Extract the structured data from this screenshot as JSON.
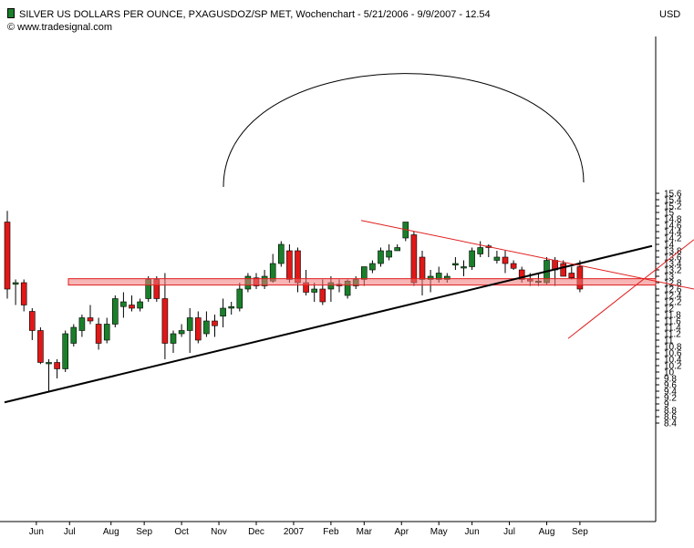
{
  "header": {
    "title": "SILVER US DOLLARS PER OUNCE, PXAGUSDOZ/SP MET, Wochenchart - 5/21/2006 - 9/9/2007 - 12.54",
    "copyright": "© www.tradesignal.com",
    "currency": "USD"
  },
  "colors": {
    "up": "#1a7f2a",
    "down": "#e01818",
    "background": "#ffffff",
    "trend": "#000000",
    "pattern": "#e02020"
  },
  "chart_data": {
    "type": "candlestick",
    "title": "SILVER US DOLLARS PER OUNCE, PXAGUSDOZ/SP MET, Wochenchart - 5/21/2006 - 9/9/2007 - 12.54",
    "ylabel": "USD",
    "ylim": [
      8.2,
      16.0
    ],
    "y_ticks": [
      8.4,
      8.6,
      8.8,
      9,
      9.2,
      9.4,
      9.6,
      9.8,
      10,
      10.2,
      10.4,
      10.6,
      10.8,
      11,
      11.2,
      11.4,
      11.6,
      11.8,
      12,
      12.2,
      12.4,
      12.6,
      12.8,
      13,
      13.2,
      13.4,
      13.6,
      13.8,
      14,
      14.2,
      14.4,
      14.6,
      14.8,
      15,
      15.2,
      15.4,
      15.6
    ],
    "x_labels": [
      {
        "label": "Jun",
        "week": 3.5
      },
      {
        "label": "Jul",
        "week": 7.5
      },
      {
        "label": "Aug",
        "week": 12.5
      },
      {
        "label": "Sep",
        "week": 16.5
      },
      {
        "label": "Oct",
        "week": 21
      },
      {
        "label": "Nov",
        "week": 25.5
      },
      {
        "label": "Dec",
        "week": 30
      },
      {
        "label": "2007",
        "week": 34.5
      },
      {
        "label": "Feb",
        "week": 39
      },
      {
        "label": "Mar",
        "week": 43
      },
      {
        "label": "Apr",
        "week": 47.5
      },
      {
        "label": "May",
        "week": 52
      },
      {
        "label": "Jun",
        "week": 56
      },
      {
        "label": "Jul",
        "week": 60.5
      },
      {
        "label": "Aug",
        "week": 65
      },
      {
        "label": "Sep",
        "week": 69
      }
    ],
    "candles": [
      {
        "o": 14.7,
        "h": 15.05,
        "l": 12.3,
        "c": 12.6
      },
      {
        "o": 12.75,
        "h": 12.9,
        "l": 12.1,
        "c": 12.8
      },
      {
        "o": 12.8,
        "h": 12.9,
        "l": 11.9,
        "c": 12.1
      },
      {
        "o": 11.9,
        "h": 12.0,
        "l": 11.0,
        "c": 11.3
      },
      {
        "o": 11.3,
        "h": 11.4,
        "l": 10.25,
        "c": 10.3
      },
      {
        "o": 10.3,
        "h": 10.4,
        "l": 9.4,
        "c": 10.3
      },
      {
        "o": 10.3,
        "h": 10.4,
        "l": 9.8,
        "c": 10.1
      },
      {
        "o": 10.1,
        "h": 11.3,
        "l": 10.0,
        "c": 11.2
      },
      {
        "o": 10.9,
        "h": 11.5,
        "l": 10.8,
        "c": 11.4
      },
      {
        "o": 11.3,
        "h": 11.8,
        "l": 11.1,
        "c": 11.7
      },
      {
        "o": 11.7,
        "h": 12.1,
        "l": 11.5,
        "c": 11.6
      },
      {
        "o": 11.5,
        "h": 11.7,
        "l": 10.7,
        "c": 10.9
      },
      {
        "o": 11.0,
        "h": 11.7,
        "l": 10.9,
        "c": 11.5
      },
      {
        "o": 11.5,
        "h": 12.4,
        "l": 11.4,
        "c": 12.3
      },
      {
        "o": 12.05,
        "h": 12.5,
        "l": 11.7,
        "c": 12.2
      },
      {
        "o": 12.1,
        "h": 12.4,
        "l": 11.9,
        "c": 12.0
      },
      {
        "o": 12.0,
        "h": 12.3,
        "l": 11.9,
        "c": 12.2
      },
      {
        "o": 12.3,
        "h": 13.0,
        "l": 12.2,
        "c": 12.9
      },
      {
        "o": 12.9,
        "h": 13.0,
        "l": 12.2,
        "c": 12.3
      },
      {
        "o": 12.3,
        "h": 13.1,
        "l": 10.4,
        "c": 10.9
      },
      {
        "o": 10.9,
        "h": 11.3,
        "l": 10.6,
        "c": 11.2
      },
      {
        "o": 11.2,
        "h": 11.5,
        "l": 11.1,
        "c": 11.3
      },
      {
        "o": 11.3,
        "h": 12.0,
        "l": 10.6,
        "c": 11.7
      },
      {
        "o": 11.7,
        "h": 11.9,
        "l": 10.9,
        "c": 11.0
      },
      {
        "o": 11.2,
        "h": 11.9,
        "l": 11.1,
        "c": 11.6
      },
      {
        "o": 11.6,
        "h": 11.8,
        "l": 11.1,
        "c": 11.45
      },
      {
        "o": 11.75,
        "h": 12.3,
        "l": 11.4,
        "c": 12.0
      },
      {
        "o": 12.0,
        "h": 12.2,
        "l": 11.8,
        "c": 12.05
      },
      {
        "o": 12.0,
        "h": 12.8,
        "l": 11.9,
        "c": 12.6
      },
      {
        "o": 12.6,
        "h": 13.1,
        "l": 12.5,
        "c": 13.0
      },
      {
        "o": 12.95,
        "h": 13.1,
        "l": 12.6,
        "c": 12.7
      },
      {
        "o": 12.7,
        "h": 13.2,
        "l": 12.6,
        "c": 13.0
      },
      {
        "o": 12.85,
        "h": 13.7,
        "l": 12.8,
        "c": 13.4
      },
      {
        "o": 13.4,
        "h": 14.1,
        "l": 13.3,
        "c": 14.0
      },
      {
        "o": 13.8,
        "h": 14.0,
        "l": 12.8,
        "c": 12.9
      },
      {
        "o": 13.8,
        "h": 13.9,
        "l": 12.5,
        "c": 12.8
      },
      {
        "o": 12.8,
        "h": 13.2,
        "l": 12.4,
        "c": 12.5
      },
      {
        "o": 12.5,
        "h": 12.8,
        "l": 12.2,
        "c": 12.6
      },
      {
        "o": 12.6,
        "h": 12.9,
        "l": 12.1,
        "c": 12.2
      },
      {
        "o": 12.6,
        "h": 13.0,
        "l": 12.2,
        "c": 12.8
      },
      {
        "o": 12.75,
        "h": 12.9,
        "l": 12.5,
        "c": 12.7
      },
      {
        "o": 12.4,
        "h": 12.9,
        "l": 12.3,
        "c": 12.85
      },
      {
        "o": 12.7,
        "h": 13.0,
        "l": 12.6,
        "c": 12.9
      },
      {
        "o": 12.9,
        "h": 13.3,
        "l": 12.7,
        "c": 13.3
      },
      {
        "o": 13.2,
        "h": 13.5,
        "l": 13.1,
        "c": 13.4
      },
      {
        "o": 13.4,
        "h": 13.9,
        "l": 13.3,
        "c": 13.8
      },
      {
        "o": 13.6,
        "h": 14.0,
        "l": 13.5,
        "c": 13.8
      },
      {
        "o": 13.8,
        "h": 14.0,
        "l": 13.8,
        "c": 13.9
      },
      {
        "o": 14.2,
        "h": 14.7,
        "l": 14.1,
        "c": 14.7
      },
      {
        "o": 14.3,
        "h": 14.4,
        "l": 12.7,
        "c": 12.8
      },
      {
        "o": 13.6,
        "h": 13.8,
        "l": 12.4,
        "c": 12.9
      },
      {
        "o": 12.9,
        "h": 13.2,
        "l": 12.5,
        "c": 13.0
      },
      {
        "o": 12.9,
        "h": 13.3,
        "l": 12.8,
        "c": 13.1
      },
      {
        "o": 12.9,
        "h": 13.1,
        "l": 12.8,
        "c": 13.0
      },
      {
        "o": 13.35,
        "h": 13.6,
        "l": 13.2,
        "c": 13.4
      },
      {
        "o": 13.3,
        "h": 13.5,
        "l": 13.0,
        "c": 13.3
      },
      {
        "o": 13.3,
        "h": 13.9,
        "l": 13.2,
        "c": 13.8
      },
      {
        "o": 13.7,
        "h": 14.1,
        "l": 13.6,
        "c": 13.9
      },
      {
        "o": 13.95,
        "h": 14.0,
        "l": 13.6,
        "c": 13.9
      },
      {
        "o": 13.5,
        "h": 13.8,
        "l": 13.4,
        "c": 13.6
      },
      {
        "o": 13.6,
        "h": 13.8,
        "l": 13.1,
        "c": 13.4
      },
      {
        "o": 13.4,
        "h": 13.5,
        "l": 13.2,
        "c": 13.25
      },
      {
        "o": 13.2,
        "h": 13.3,
        "l": 12.8,
        "c": 12.9
      },
      {
        "o": 12.9,
        "h": 13.1,
        "l": 12.7,
        "c": 12.85
      },
      {
        "o": 12.85,
        "h": 13.1,
        "l": 12.7,
        "c": 12.85
      },
      {
        "o": 12.8,
        "h": 13.6,
        "l": 12.75,
        "c": 13.5
      },
      {
        "o": 13.5,
        "h": 13.6,
        "l": 12.7,
        "c": 13.2
      },
      {
        "o": 13.4,
        "h": 13.5,
        "l": 13.0,
        "c": 13.0
      },
      {
        "o": 13.1,
        "h": 13.3,
        "l": 12.9,
        "c": 12.95
      },
      {
        "o": 13.3,
        "h": 13.5,
        "l": 12.5,
        "c": 12.6
      }
    ]
  }
}
